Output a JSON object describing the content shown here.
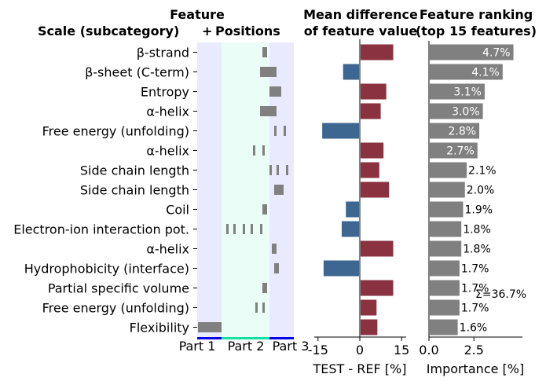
{
  "chart_data": [
    {
      "type": "bar",
      "title_line1": "Feature",
      "title_line2_left": "Scale (subcategory)",
      "title_line2_plus": "+",
      "title_line2_right": "Positions",
      "categories": [
        "β-strand",
        "β-sheet (C-term)",
        "Entropy",
        "α-helix",
        "Free energy (unfolding)",
        "α-helix",
        "Side chain length",
        "Side chain length",
        "Coil",
        "Electron-ion interaction pot.",
        "α-helix",
        "Hydrophobicity (interface)",
        "Partial specific volume",
        "Free energy (unfolding)",
        "Flexibility"
      ],
      "x_tick_labels": [
        "Part 1",
        "Part 2",
        "Part 3"
      ],
      "part_colors": [
        "#eaeaff",
        "#eafdf7",
        "#eaeaff"
      ],
      "part_bar_colors": [
        "#0000ee",
        "#10e0a0",
        "#0000ee"
      ],
      "mark_color": "#808080"
    },
    {
      "type": "bar",
      "title_line1": "Mean difference",
      "title_line2": "of feature value",
      "xlabel": "TEST - REF [%]",
      "x_ticks": [
        -15,
        0,
        15
      ],
      "xlim": [
        -16.5,
        16.5
      ],
      "values": [
        12,
        -6,
        9.5,
        7.5,
        -13.5,
        8.5,
        7,
        10.5,
        -5,
        -6.5,
        12,
        -13,
        12,
        6,
        6.3
      ],
      "positive_color": "#8b3241",
      "negative_color": "#3d6690"
    },
    {
      "type": "bar",
      "title_line1": "Feature ranking",
      "title_line2": "(top 15 features)",
      "xlabel": "Importance [%]",
      "x_ticks": [
        "0.0",
        "2.5"
      ],
      "xlim": [
        0,
        5.2
      ],
      "values": [
        4.7,
        4.1,
        3.1,
        3.0,
        2.8,
        2.7,
        2.1,
        2.0,
        1.9,
        1.8,
        1.8,
        1.7,
        1.7,
        1.7,
        1.6
      ],
      "value_labels": [
        "4.7%",
        "4.1%",
        "3.1%",
        "3.0%",
        "2.8%",
        "2.7%",
        "2.1%",
        "2.0%",
        "1.9%",
        "1.8%",
        "1.8%",
        "1.7%",
        "1.7%",
        "1.7%",
        "1.6%"
      ],
      "sum_label": "Σ=36.7%",
      "bar_color": "#808080"
    }
  ]
}
